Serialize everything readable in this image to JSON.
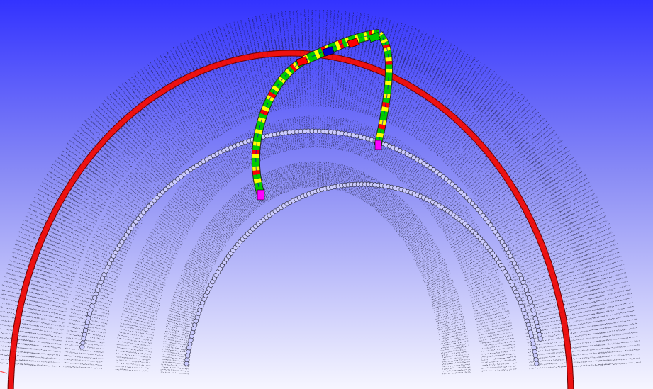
{
  "viewport": {
    "background_top_color": "#3333ff",
    "background_bottom_color": "#f6f6ff"
  },
  "scene": {
    "particle_dot_color": "#111122",
    "outer_ring": {
      "color": "#ee1111",
      "outline_color": "#6a0000"
    },
    "inner_ring": {
      "color": "#ccccff",
      "outline_color": "#333344"
    },
    "deformed_strip": {
      "colors": [
        "#ff0000",
        "#ffff00",
        "#00cc00",
        "#0000cc",
        "#ff00ff",
        "#000000"
      ]
    }
  }
}
